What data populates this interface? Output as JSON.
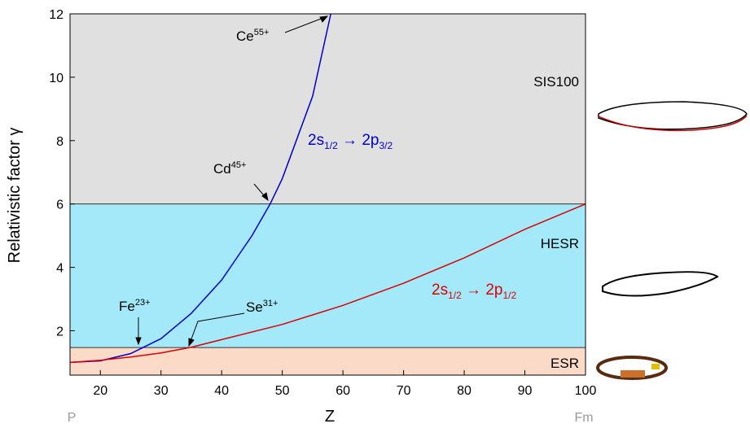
{
  "chart_data": {
    "type": "line",
    "x_label": "Z",
    "y_label": "Relativistic factor  γ",
    "xlim": [
      15,
      100
    ],
    "ylim": [
      0.6,
      12
    ],
    "xticks": [
      20,
      30,
      40,
      50,
      60,
      70,
      80,
      90,
      100
    ],
    "yticks": [
      2,
      4,
      6,
      8,
      10,
      12
    ],
    "x_end_labels": [
      "P",
      "Fm"
    ],
    "bands": [
      {
        "name": "ESR",
        "from": 0.6,
        "to": 1.47,
        "color": "#fcdac8"
      },
      {
        "name": "HESR",
        "from": 1.47,
        "to": 6,
        "color": "#a3e9f9"
      },
      {
        "name": "SIS100",
        "from": 6,
        "to": 12,
        "color": "#e0e0e0"
      }
    ],
    "series": [
      {
        "name": [
          "2s",
          "1/2",
          " → 2p",
          "3/2"
        ],
        "color": "#0000cc",
        "x": [
          15,
          20,
          25,
          30,
          35,
          40,
          45,
          48,
          50,
          55,
          58
        ],
        "values": [
          1.0,
          1.05,
          1.28,
          1.75,
          2.55,
          3.6,
          5.0,
          6.0,
          6.8,
          9.4,
          12
        ]
      },
      {
        "name": [
          "2s",
          "1/2",
          " → 2p",
          "1/2"
        ],
        "color": "#dd0000",
        "x": [
          15,
          20,
          25,
          30,
          35,
          40,
          50,
          60,
          70,
          80,
          90,
          100
        ],
        "values": [
          1.0,
          1.07,
          1.17,
          1.3,
          1.48,
          1.72,
          2.2,
          2.8,
          3.5,
          4.3,
          5.2,
          6.0
        ]
      }
    ],
    "annotations": [
      [
        "Ce",
        "55+"
      ],
      [
        "Cd",
        "45+"
      ],
      [
        "Fe",
        "23+"
      ],
      [
        "Se",
        "31+"
      ]
    ]
  }
}
